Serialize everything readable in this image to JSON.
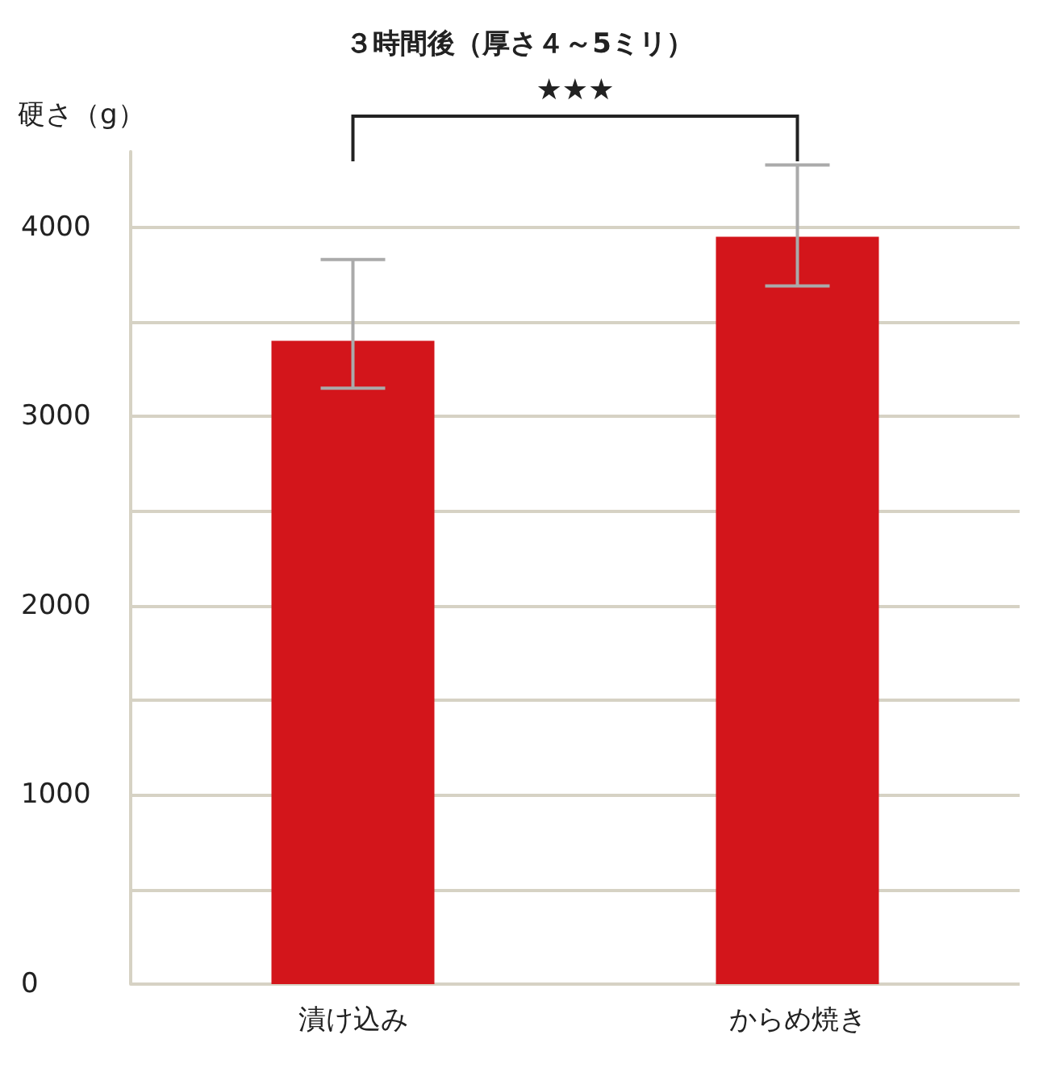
{
  "chart_data": {
    "type": "bar",
    "title": "３時間後（厚さ４～5ミリ）",
    "ylabel": "硬さ（g）",
    "categories": [
      "漬け込み",
      "からめ焼き"
    ],
    "values": [
      3400,
      3950
    ],
    "color": "#d3151b",
    "errors": [
      [
        3150,
        3830
      ],
      [
        3690,
        4330
      ]
    ],
    "ylim": [
      0,
      4400
    ],
    "yticks": [
      0,
      {
        "value": 500,
        "label": null
      },
      1000,
      {
        "value": 1500,
        "label": null
      },
      2000,
      {
        "value": 2500,
        "label": null
      },
      3000,
      {
        "value": 3500,
        "label": null
      },
      4000
    ],
    "grid": "y",
    "annotations": [
      "★★★"
    ]
  }
}
